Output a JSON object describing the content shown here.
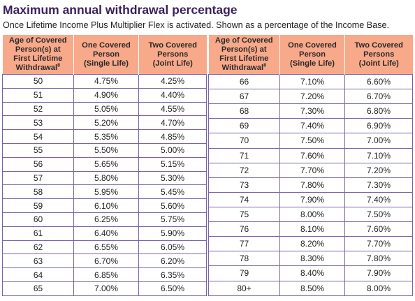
{
  "title": "Maximum annual withdrawal percentage",
  "subtitle": "Once Lifetime Income Plus Multiplier Flex is activated. Shown as a percentage of the Income Base.",
  "headers": {
    "age_line1": "Age of Covered",
    "age_line2": "Person(s) at",
    "age_line3": "First Lifetime",
    "age_line4": "Withdrawal",
    "age_footnote": "8",
    "one_line1": "One Covered",
    "one_line2": "Person",
    "one_line3": "(Single Life)",
    "two_line1": "Two Covered",
    "two_line2": "Persons",
    "two_line3": "(Joint Life)"
  },
  "left_rows": [
    {
      "age": "50",
      "one": "4.75%",
      "two": "4.25%"
    },
    {
      "age": "51",
      "one": "4.90%",
      "two": "4.40%"
    },
    {
      "age": "52",
      "one": "5.05%",
      "two": "4.55%"
    },
    {
      "age": "53",
      "one": "5.20%",
      "two": "4.70%"
    },
    {
      "age": "54",
      "one": "5.35%",
      "two": "4.85%"
    },
    {
      "age": "55",
      "one": "5.50%",
      "two": "5.00%"
    },
    {
      "age": "56",
      "one": "5.65%",
      "two": "5.15%"
    },
    {
      "age": "57",
      "one": "5.80%",
      "two": "5.30%"
    },
    {
      "age": "58",
      "one": "5.95%",
      "two": "5.45%"
    },
    {
      "age": "59",
      "one": "6.10%",
      "two": "5.60%"
    },
    {
      "age": "60",
      "one": "6.25%",
      "two": "5.75%"
    },
    {
      "age": "61",
      "one": "6.40%",
      "two": "5.90%"
    },
    {
      "age": "62",
      "one": "6.55%",
      "two": "6.05%"
    },
    {
      "age": "63",
      "one": "6.70%",
      "two": "6.20%"
    },
    {
      "age": "64",
      "one": "6.85%",
      "two": "6.35%"
    },
    {
      "age": "65",
      "one": "7.00%",
      "two": "6.50%"
    }
  ],
  "right_rows": [
    {
      "age": "66",
      "one": "7.10%",
      "two": "6.60%"
    },
    {
      "age": "67",
      "one": "7.20%",
      "two": "6.70%"
    },
    {
      "age": "68",
      "one": "7.30%",
      "two": "6.80%"
    },
    {
      "age": "69",
      "one": "7.40%",
      "two": "6.90%"
    },
    {
      "age": "70",
      "one": "7.50%",
      "two": "7.00%"
    },
    {
      "age": "71",
      "one": "7.60%",
      "two": "7.10%"
    },
    {
      "age": "72",
      "one": "7.70%",
      "two": "7.20%"
    },
    {
      "age": "73",
      "one": "7.80%",
      "two": "7.30%"
    },
    {
      "age": "74",
      "one": "7.90%",
      "two": "7.40%"
    },
    {
      "age": "75",
      "one": "8.00%",
      "two": "7.50%"
    },
    {
      "age": "76",
      "one": "8.10%",
      "two": "7.60%"
    },
    {
      "age": "77",
      "one": "8.20%",
      "two": "7.70%"
    },
    {
      "age": "78",
      "one": "8.30%",
      "two": "7.80%"
    },
    {
      "age": "79",
      "one": "8.40%",
      "two": "7.90%"
    },
    {
      "age": "80+",
      "one": "8.50%",
      "two": "8.00%"
    }
  ],
  "colors": {
    "header_bg": "#f7a98a",
    "border": "#7a63a8",
    "title": "#3a1f5e"
  }
}
